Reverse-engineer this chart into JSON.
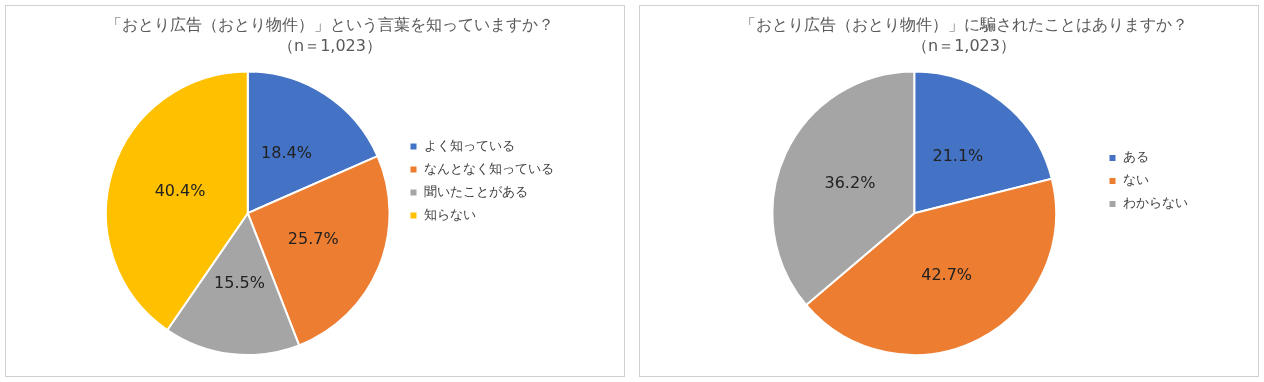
{
  "chart_data": [
    {
      "type": "pie",
      "title": "「おとり広告（おとり物件）」という言葉を知っていますか？",
      "subtitle": "（n＝1,023）",
      "categories": [
        "よく知っている",
        "なんとなく知っている",
        "聞いたことがある",
        "知らない"
      ],
      "values": [
        18.4,
        25.7,
        15.5,
        40.4
      ],
      "value_labels": [
        "18.4%",
        "25.7%",
        "15.5%",
        "40.4%"
      ],
      "colors": [
        "#4472c4",
        "#ed7d31",
        "#a5a5a5",
        "#ffc000"
      ],
      "legend": "right"
    },
    {
      "type": "pie",
      "title": "「おとり広告（おとり物件）」に騙されたことはありますか？",
      "subtitle": "（n＝1,023）",
      "categories": [
        "ある",
        "ない",
        "わからない"
      ],
      "values": [
        21.1,
        42.7,
        36.2
      ],
      "value_labels": [
        "21.1%",
        "42.7%",
        "36.2%"
      ],
      "colors": [
        "#4472c4",
        "#ed7d31",
        "#a5a5a5"
      ],
      "legend": "right"
    }
  ]
}
